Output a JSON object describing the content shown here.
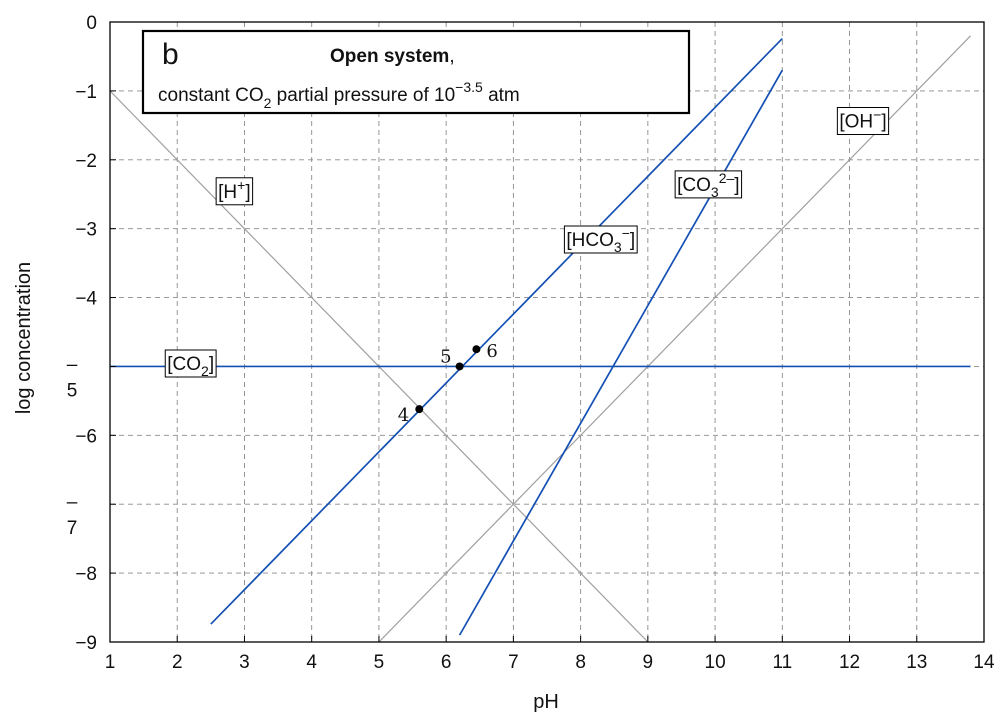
{
  "chart_data": {
    "type": "line",
    "panel_letter": "b",
    "title_bold": "Open system",
    "title_comma": ",",
    "subtitle_pre": "constant CO",
    "subtitle_sub": "2",
    "subtitle_mid": " partial pressure of 10",
    "subtitle_sup": "−3.5",
    "subtitle_post": " atm",
    "xlabel": "pH",
    "ylabel": "log concentration",
    "xlim": [
      1,
      14
    ],
    "ylim": [
      -9,
      0
    ],
    "grid": true,
    "x_ticks": [
      1,
      2,
      3,
      4,
      5,
      6,
      7,
      8,
      9,
      10,
      11,
      12,
      13,
      14
    ],
    "x_tick_labels": [
      "1",
      "2",
      "3",
      "4",
      "5",
      "6",
      "7",
      "8",
      "9",
      "10",
      "11",
      "12",
      "13",
      "14"
    ],
    "y_ticks": [
      0,
      -1,
      -2,
      -3,
      -4,
      -5,
      -6,
      -7,
      -8,
      -9
    ],
    "y_tick_labels": [
      "0",
      "−1",
      "−2",
      "−3",
      "−4",
      "–\n5",
      "−6",
      "–\n7",
      "−8",
      "−9"
    ],
    "series": [
      {
        "name": "[H⁺]",
        "color": "#a0a0a0",
        "points": [
          [
            1,
            -1
          ],
          [
            9,
            -9
          ]
        ]
      },
      {
        "name": "[OH⁻]",
        "color": "#a0a0a0",
        "points": [
          [
            5,
            -9
          ],
          [
            13.8,
            -0.2
          ]
        ]
      },
      {
        "name": "[CO₂]",
        "color": "#1450b4",
        "points": [
          [
            1,
            -5
          ],
          [
            13.8,
            -5
          ]
        ]
      },
      {
        "name": "[HCO₃⁻]",
        "color": "#1450b4",
        "points": [
          [
            2.5,
            -8.74
          ],
          [
            11,
            -0.24
          ]
        ]
      },
      {
        "name": "[CO₃²⁻]",
        "color": "#1450b4",
        "points": [
          [
            6.2,
            -8.9
          ],
          [
            11,
            -0.7
          ]
        ]
      }
    ],
    "series_labels": [
      {
        "main": "[H",
        "sup": "+",
        "sub": "",
        "tail": "]",
        "x": 2.85,
        "y": -2.45
      },
      {
        "main": "[OH",
        "sup": "−",
        "sub": "",
        "tail": "]",
        "x": 12.2,
        "y": -1.43
      },
      {
        "main": "[CO",
        "sup": "",
        "sub": "2",
        "tail": "]",
        "x": 2.2,
        "y": -4.95
      },
      {
        "main": "[HCO",
        "sup": "−",
        "sub": "3",
        "tail": "]",
        "x": 8.3,
        "y": -3.15
      },
      {
        "main": "[CO",
        "sup": "2–",
        "sub": "3",
        "tail": "]",
        "x": 9.9,
        "y": -2.35
      }
    ],
    "points": [
      {
        "label": "4",
        "x": 5.6,
        "y": -5.62
      },
      {
        "label": "5",
        "x": 6.2,
        "y": -5.0
      },
      {
        "label": "6",
        "x": 6.45,
        "y": -4.75
      }
    ]
  }
}
